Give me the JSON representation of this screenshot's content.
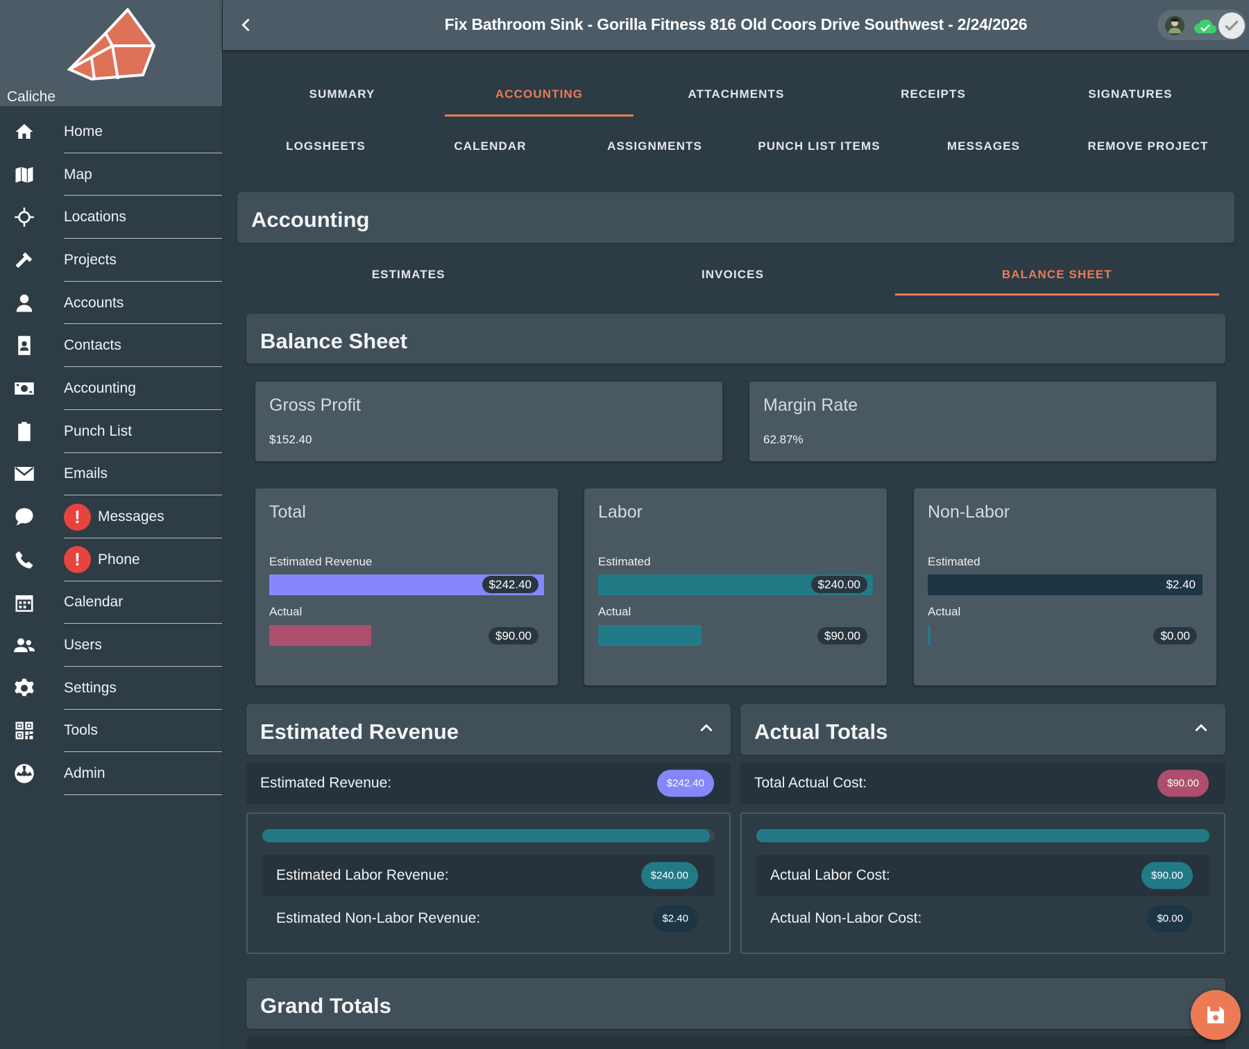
{
  "brand": {
    "name": "Caliche",
    "logo_icon": "cube-logo-icon"
  },
  "sidebar": {
    "items": [
      {
        "label": "Home",
        "icon": "home-icon"
      },
      {
        "label": "Map",
        "icon": "map-icon"
      },
      {
        "label": "Locations",
        "icon": "crosshair-icon"
      },
      {
        "label": "Projects",
        "icon": "hammer-icon"
      },
      {
        "label": "Accounts",
        "icon": "person-icon"
      },
      {
        "label": "Contacts",
        "icon": "contact-card-icon"
      },
      {
        "label": "Accounting",
        "icon": "money-icon"
      },
      {
        "label": "Punch List",
        "icon": "clipboard-icon"
      },
      {
        "label": "Emails",
        "icon": "envelope-icon"
      },
      {
        "label": "Messages",
        "icon": "chat-icon",
        "alert": "!"
      },
      {
        "label": "Phone",
        "icon": "phone-icon",
        "alert": "!"
      },
      {
        "label": "Calendar",
        "icon": "calendar-icon"
      },
      {
        "label": "Users",
        "icon": "users-icon"
      },
      {
        "label": "Settings",
        "icon": "gear-icon"
      },
      {
        "label": "Tools",
        "icon": "qr-grid-icon"
      },
      {
        "label": "Admin",
        "icon": "admin-icon"
      }
    ]
  },
  "header": {
    "title": "Fix Bathroom Sink - Gorilla Fitness 816 Old Coors Drive Southwest - 2/24/2026"
  },
  "tabs": {
    "row1": [
      "SUMMARY",
      "ACCOUNTING",
      "ATTACHMENTS",
      "RECEIPTS",
      "SIGNATURES"
    ],
    "row2": [
      "LOGSHEETS",
      "CALENDAR",
      "ASSIGNMENTS",
      "PUNCH LIST ITEMS",
      "MESSAGES",
      "REMOVE PROJECT"
    ],
    "active": "ACCOUNTING"
  },
  "accounting": {
    "title": "Accounting",
    "subtabs": [
      "ESTIMATES",
      "INVOICES",
      "BALANCE SHEET"
    ],
    "active_subtab": "BALANCE SHEET"
  },
  "balance_sheet": {
    "title": "Balance Sheet",
    "gross_profit": {
      "label": "Gross Profit",
      "value": "$152.40"
    },
    "margin_rate": {
      "label": "Margin Rate",
      "value": "62.87%"
    },
    "total": {
      "title": "Total",
      "estimated_label": "Estimated Revenue",
      "estimated_value": "$242.40",
      "estimated_fraction": 1.0,
      "actual_label": "Actual",
      "actual_value": "$90.00",
      "actual_fraction": 0.371
    },
    "labor": {
      "title": "Labor",
      "estimated_label": "Estimated",
      "estimated_value": "$240.00",
      "estimated_fraction": 1.0,
      "actual_label": "Actual",
      "actual_value": "$90.00",
      "actual_fraction": 0.375
    },
    "non_labor": {
      "title": "Non-Labor",
      "estimated_label": "Estimated",
      "estimated_value": "$2.40",
      "estimated_fraction": 1.0,
      "actual_label": "Actual",
      "actual_value": "$0.00",
      "actual_fraction": 0.0
    }
  },
  "estimated_revenue": {
    "title": "Estimated Revenue",
    "total_label": "Estimated Revenue:",
    "total_value": "$242.40",
    "labor_label": "Estimated Labor Revenue:",
    "labor_value": "$240.00",
    "non_labor_label": "Estimated Non-Labor Revenue:",
    "non_labor_value": "$2.40",
    "labor_fraction": 0.99
  },
  "actual_totals": {
    "title": "Actual Totals",
    "total_label": "Total Actual Cost:",
    "total_value": "$90.00",
    "labor_label": "Actual Labor Cost:",
    "labor_value": "$90.00",
    "non_labor_label": "Actual Non-Labor Cost:",
    "non_labor_value": "$0.00",
    "labor_fraction": 1.0
  },
  "grand_totals": {
    "title": "Grand Totals"
  },
  "colors": {
    "accent": "#ec7b55",
    "total_estimated": "#8587fb",
    "total_actual": "#ad4f6c",
    "labor": "#237a87",
    "non_labor": "#1d3645"
  },
  "actions": {
    "save_icon": "save-icon"
  }
}
